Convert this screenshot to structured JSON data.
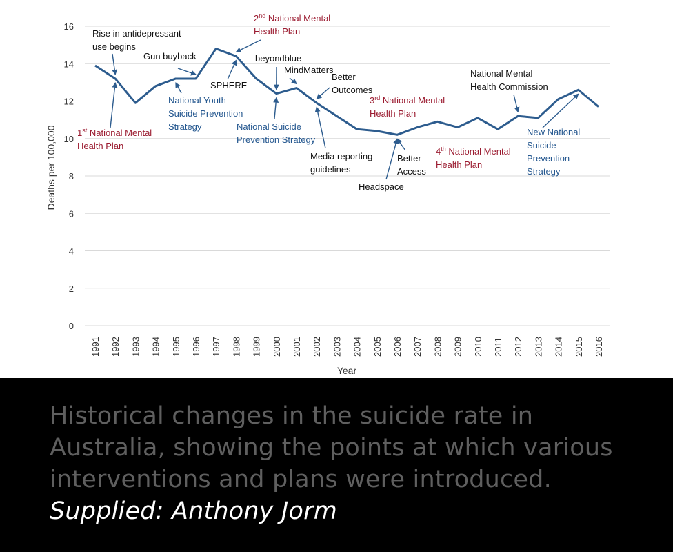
{
  "chart_data": {
    "type": "line",
    "title": "",
    "xlabel": "Year",
    "ylabel": "Deaths per 100,000",
    "ylim": [
      0,
      16
    ],
    "yticks": [
      0,
      2,
      4,
      6,
      8,
      10,
      12,
      14,
      16
    ],
    "grid": true,
    "categories": [
      "1991",
      "1992",
      "1993",
      "1994",
      "1995",
      "1996",
      "1997",
      "1998",
      "1999",
      "2000",
      "2001",
      "2002",
      "2003",
      "2004",
      "2005",
      "2006",
      "2007",
      "2008",
      "2009",
      "2010",
      "2011",
      "2012",
      "2013",
      "2014",
      "2015",
      "2016"
    ],
    "series": [
      {
        "name": "Suicide rate",
        "color": "#2d5c8e",
        "values": [
          13.9,
          13.2,
          11.9,
          12.8,
          13.2,
          13.2,
          14.8,
          14.4,
          13.2,
          12.4,
          12.7,
          11.9,
          11.2,
          10.5,
          10.4,
          10.2,
          10.6,
          10.9,
          10.6,
          11.1,
          10.5,
          11.2,
          11.1,
          12.1,
          12.6,
          11.7
        ]
      }
    ],
    "annotations": [
      {
        "id": "first-national-mental-health-plan",
        "lines": [
          "1st National Mental",
          "Health Plan"
        ],
        "year": "1992",
        "color": "red"
      },
      {
        "id": "rise-antidepressant",
        "lines": [
          "Rise in antidepressant",
          "use begins"
        ],
        "year": "1992",
        "color": "black"
      },
      {
        "id": "gun-buyback",
        "lines": [
          "Gun buyback"
        ],
        "year": "1996",
        "color": "black"
      },
      {
        "id": "national-youth-suicide-prevention",
        "lines": [
          "National Youth",
          "Suicide Prevention",
          "Strategy"
        ],
        "year": "1995",
        "color": "blue"
      },
      {
        "id": "sphere",
        "lines": [
          "SPHERE"
        ],
        "year": "1998",
        "color": "black"
      },
      {
        "id": "second-national-mental-health-plan",
        "lines": [
          "2nd National Mental",
          "Health Plan"
        ],
        "year": "1998",
        "color": "red"
      },
      {
        "id": "beyondblue",
        "lines": [
          "beyondblue"
        ],
        "year": "2000",
        "color": "black"
      },
      {
        "id": "mindmatters",
        "lines": [
          "MindMatters"
        ],
        "year": "2000",
        "color": "black"
      },
      {
        "id": "national-suicide-prevention-strategy",
        "lines": [
          "National Suicide",
          "Prevention Strategy"
        ],
        "year": "2000",
        "color": "blue"
      },
      {
        "id": "better-outcomes",
        "lines": [
          "Better",
          "Outcomes"
        ],
        "year": "2002",
        "color": "black"
      },
      {
        "id": "media-reporting-guidelines",
        "lines": [
          "Media reporting",
          "guidelines"
        ],
        "year": "2002",
        "color": "black"
      },
      {
        "id": "third-national-mental-health-plan",
        "lines": [
          "3rd National Mental",
          "Health Plan"
        ],
        "year": "2004",
        "color": "red"
      },
      {
        "id": "headspace",
        "lines": [
          "Headspace"
        ],
        "year": "2006",
        "color": "black"
      },
      {
        "id": "better-access",
        "lines": [
          "Better",
          "Access"
        ],
        "year": "2006",
        "color": "black"
      },
      {
        "id": "fourth-national-mental-health-plan",
        "lines": [
          "4th National Mental",
          "Health Plan"
        ],
        "year": "2009",
        "color": "red"
      },
      {
        "id": "national-mental-health-commission",
        "lines": [
          "National Mental",
          "Health Commission"
        ],
        "year": "2012",
        "color": "black"
      },
      {
        "id": "new-national-suicide-prevention-strategy",
        "lines": [
          "New National",
          "Suicide",
          "Prevention",
          "Strategy"
        ],
        "year": "2015",
        "color": "blue"
      }
    ]
  },
  "caption": {
    "text": "Historical changes in the suicide rate in Australia, showing the points at which various interventions and plans were introduced.",
    "credit": "Supplied: Anthony Jorm"
  },
  "colors": {
    "line": "#2d5c8e",
    "grid": "#d9d9d9",
    "blue_text": "#24578f",
    "red_text": "#9b1b30",
    "caption_text": "#5f5f5f",
    "credit_text": "#ffffff"
  }
}
